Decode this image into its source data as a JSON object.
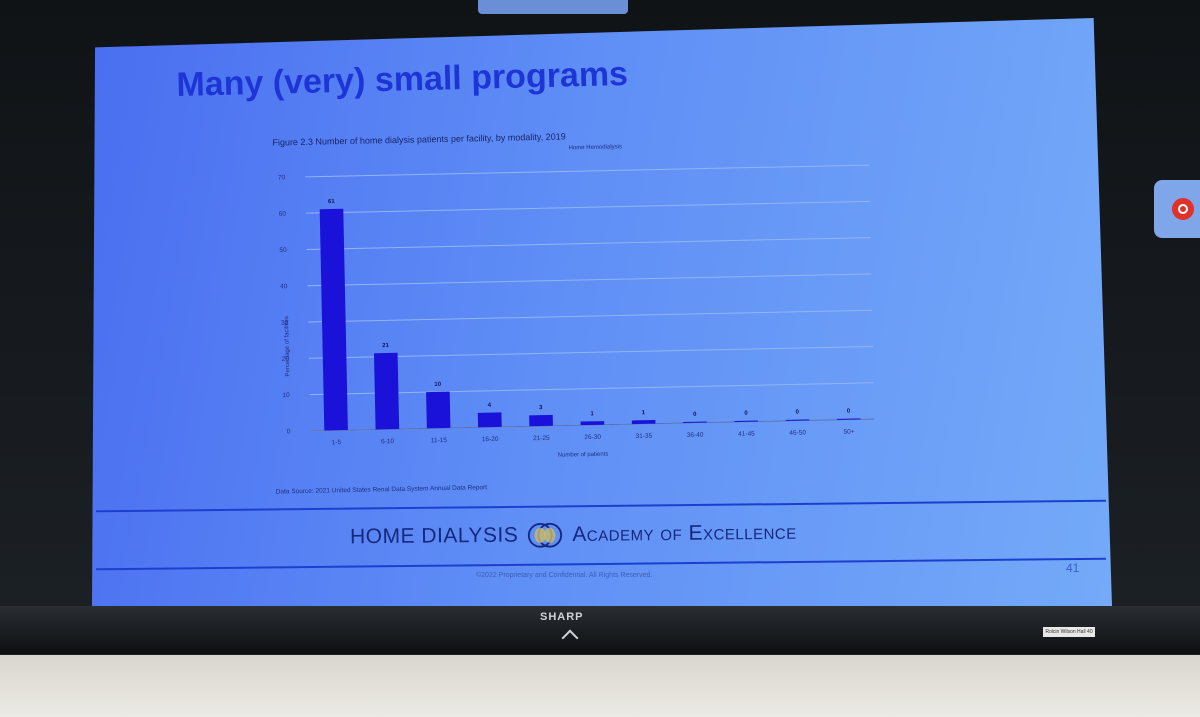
{
  "slide": {
    "title": "Many (very) small programs",
    "footer_brand_left": "HOME DIALYSIS",
    "footer_brand_right": "Academy of Excellence",
    "copyright": "©2022 Proprietary and Confidential. All Rights Reserved.",
    "page_number": "41"
  },
  "tv": {
    "brand": "SHARP",
    "tag": "Rolcin Wilson Hall 40"
  },
  "colors": {
    "bar": "#1a12d8",
    "title": "#1e35d6",
    "slide_bg": "#5f8ef6"
  },
  "chart_data": {
    "type": "bar",
    "title": "Figure 2.3 Number of home dialysis patients per facility, by modality, 2019",
    "subtitle": "Home Hemodialysis",
    "xlabel": "Number of patients",
    "ylabel": "Percentage of facilities",
    "categories": [
      "1-5",
      "6-10",
      "11-15",
      "16-20",
      "21-25",
      "26-30",
      "31-35",
      "36-40",
      "41-45",
      "46-50",
      "50+"
    ],
    "values": [
      61,
      21,
      10,
      4,
      3,
      1,
      1,
      0,
      0,
      0,
      0
    ],
    "ylim": [
      0,
      70
    ],
    "yticks": [
      0,
      10,
      20,
      30,
      40,
      50,
      60,
      70
    ],
    "grid": true,
    "source": "Data Source: 2021 United States Renal Data System Annual Data Report"
  }
}
